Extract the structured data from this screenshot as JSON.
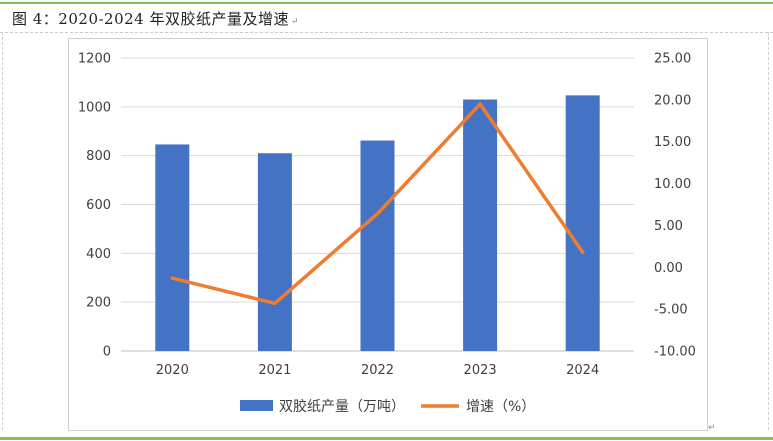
{
  "page": {
    "title": "图 4：2020-2024 年双胶纸产量及增速",
    "para_mark": "↵",
    "end_mark": "↵"
  },
  "colors": {
    "bar": "#4472c4",
    "line": "#ed7d31",
    "grid": "#d9d9d9",
    "axis_text": "#404040",
    "rule": "#7fc15b"
  },
  "chart_data": {
    "type": "bar",
    "categories": [
      "2020",
      "2021",
      "2022",
      "2023",
      "2024"
    ],
    "series": [
      {
        "name": "双胶纸产量（万吨）",
        "type": "bar",
        "axis": "left",
        "values": [
          846,
          810,
          862,
          1030,
          1047
        ]
      },
      {
        "name": "增速（%）",
        "type": "line",
        "axis": "right",
        "values": [
          -1.3,
          -4.3,
          6.4,
          19.5,
          1.8
        ]
      }
    ],
    "ylim": [
      0,
      1200
    ],
    "y_ticks": [
      "0",
      "200",
      "400",
      "600",
      "800",
      "1000",
      "1200"
    ],
    "y2lim": [
      -10,
      25
    ],
    "y2_ticks": [
      "-10.00",
      "-5.00",
      "0.00",
      "5.00",
      "10.00",
      "15.00",
      "20.00",
      "25.00"
    ],
    "grid": true,
    "legend_position": "bottom"
  }
}
